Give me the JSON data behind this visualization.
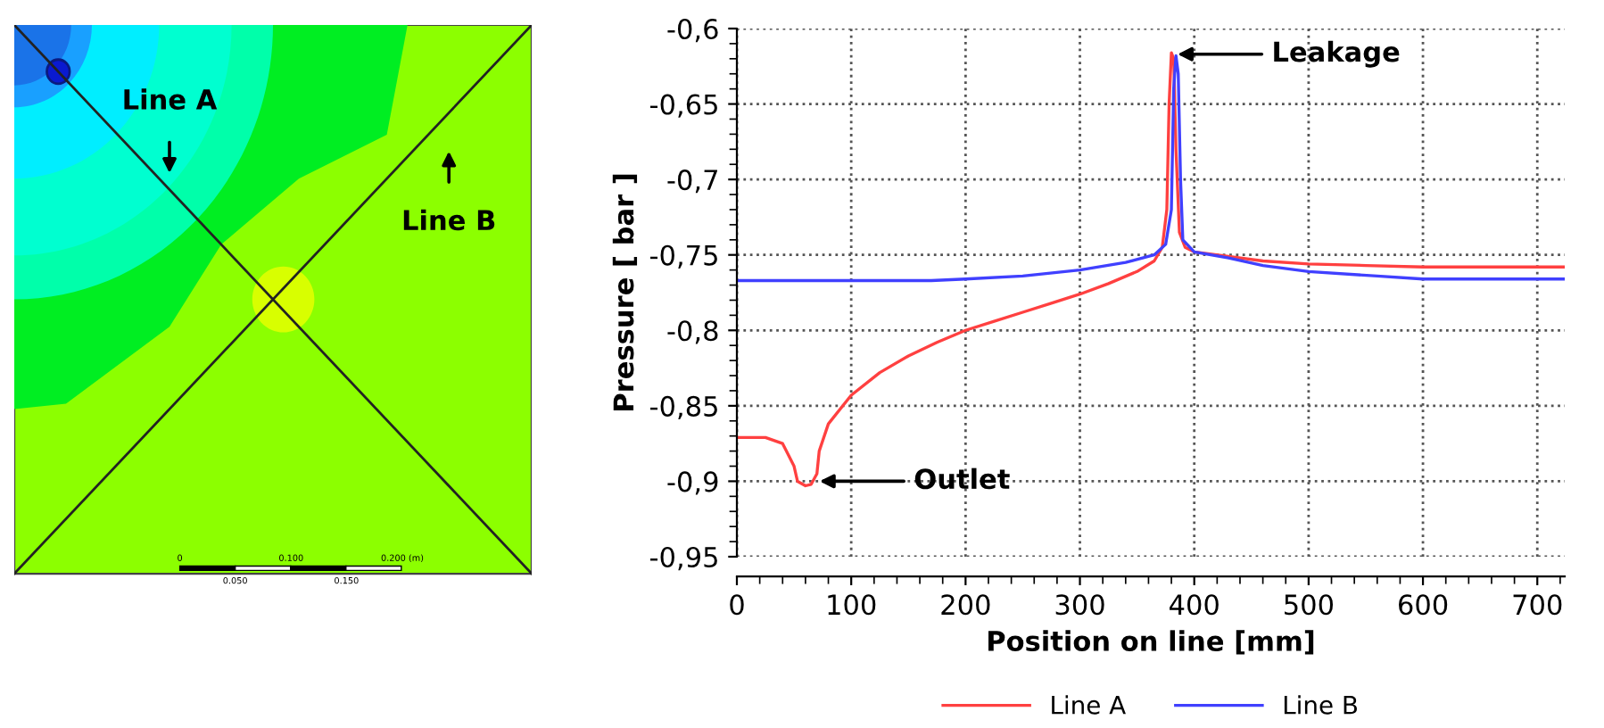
{
  "chart_data": [
    {
      "type": "other",
      "annotations": [
        "Line A",
        "Line B",
        "0",
        "0.100",
        "0.200 (m)",
        "0.050",
        "0.150"
      ]
    },
    {
      "type": "line",
      "xlabel": "Position on line [mm]",
      "ylabel": "Pressure [ bar ]",
      "xlim": [
        0,
        724
      ],
      "ylim": [
        -0.95,
        -0.6
      ],
      "xticks": [
        0,
        100,
        200,
        300,
        400,
        500,
        600,
        700
      ],
      "yticks": [
        {
          "value": -0.95,
          "label": "-0,95"
        },
        {
          "value": -0.9,
          "label": "-0,9"
        },
        {
          "value": -0.85,
          "label": "-0,85"
        },
        {
          "value": -0.8,
          "label": "-0,8"
        },
        {
          "value": -0.75,
          "label": "-0,75"
        },
        {
          "value": -0.7,
          "label": "-0,7"
        },
        {
          "value": -0.65,
          "label": "-0,65"
        },
        {
          "value": -0.6,
          "label": "-0,6"
        }
      ],
      "grid": true,
      "legend": "bottom",
      "line_style": "solid",
      "marker": "none",
      "annotations": [
        {
          "text": "Leakage",
          "x": 381,
          "y": -0.617
        },
        {
          "text": "Outlet",
          "x": 68,
          "y": -0.9
        }
      ],
      "series": [
        {
          "name": "Line A",
          "color": "#ff4040",
          "x": [
            0,
            25,
            40,
            50,
            53,
            60,
            65,
            70,
            72,
            80,
            100,
            125,
            150,
            175,
            200,
            225,
            250,
            275,
            300,
            325,
            350,
            365,
            372,
            376,
            378,
            380,
            382,
            384,
            387,
            392,
            400,
            430,
            460,
            500,
            550,
            600,
            724
          ],
          "values": [
            -0.871,
            -0.871,
            -0.875,
            -0.89,
            -0.9,
            -0.903,
            -0.902,
            -0.895,
            -0.88,
            -0.862,
            -0.843,
            -0.828,
            -0.817,
            -0.808,
            -0.8,
            -0.794,
            -0.788,
            -0.782,
            -0.776,
            -0.769,
            -0.761,
            -0.754,
            -0.745,
            -0.72,
            -0.65,
            -0.616,
            -0.62,
            -0.68,
            -0.735,
            -0.745,
            -0.748,
            -0.751,
            -0.754,
            -0.756,
            -0.757,
            -0.758,
            -0.758
          ]
        },
        {
          "name": "Line B",
          "color": "#4040ff",
          "x": [
            0,
            170,
            200,
            250,
            300,
            340,
            365,
            375,
            380,
            382,
            384,
            386,
            388,
            390,
            400,
            430,
            460,
            500,
            560,
            600,
            724
          ],
          "values": [
            -0.767,
            -0.767,
            -0.766,
            -0.764,
            -0.76,
            -0.755,
            -0.75,
            -0.743,
            -0.72,
            -0.64,
            -0.618,
            -0.63,
            -0.7,
            -0.74,
            -0.748,
            -0.752,
            -0.757,
            -0.761,
            -0.764,
            -0.766,
            -0.766
          ]
        }
      ]
    }
  ]
}
